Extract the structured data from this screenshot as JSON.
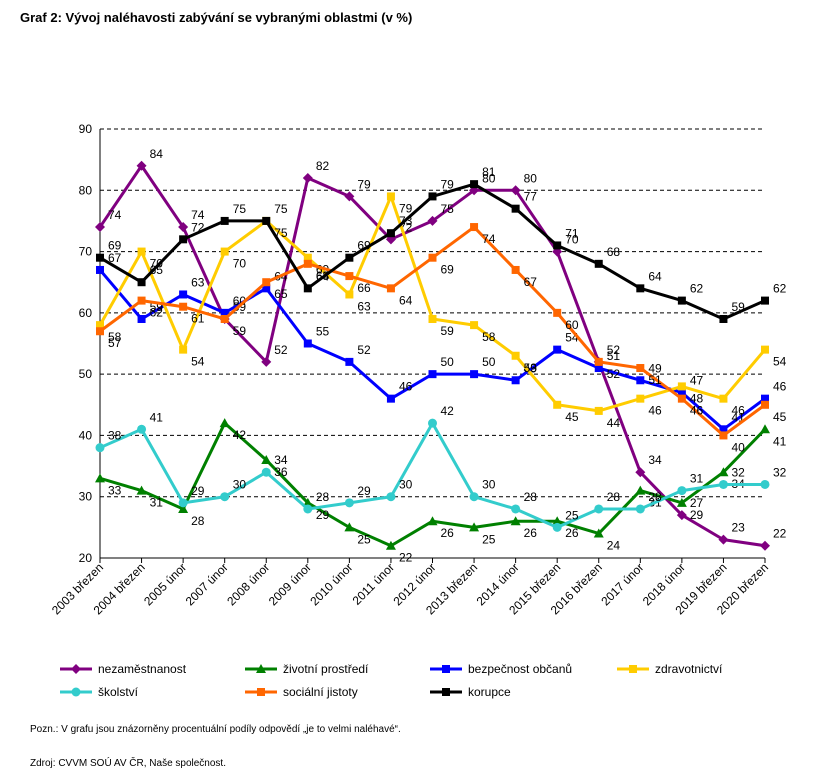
{
  "title": "Graf 2: Vývoj naléhavosti zabývání se vybranými oblastmi (v %)",
  "note": "Pozn.: V grafu jsou znázorněny procentuální podíly odpovědí „je to velmi naléhavé“.",
  "source": "Zdroj: CVVM SOÚ AV ČR, Naše společnost.",
  "chart_data": {
    "type": "line",
    "categories": [
      "2003 březen",
      "2004 březen",
      "2005 únor",
      "2007 únor",
      "2008 únor",
      "2009 únor",
      "2010 únor",
      "2011 únor",
      "2012 únor",
      "2013 březen",
      "2014 únor",
      "2015 březen",
      "2016 březen",
      "2017 únor",
      "2018 únor",
      "2019 březen",
      "2020 březen"
    ],
    "ylim": [
      20,
      90
    ],
    "yticks": [
      20,
      30,
      40,
      50,
      60,
      70,
      80,
      90
    ],
    "grid": "horizontal dashed",
    "legend_position": "bottom",
    "series": [
      {
        "name": "nezaměstnanost",
        "color": "#800080",
        "marker": "diamond",
        "values": [
          74,
          84,
          74,
          59,
          52,
          82,
          79,
          72,
          75,
          80,
          80,
          70,
          52,
          34,
          27,
          23,
          22
        ]
      },
      {
        "name": "životní prostředí",
        "color": "#008000",
        "marker": "triangle",
        "values": [
          33,
          31,
          28,
          42,
          36,
          29,
          25,
          22,
          26,
          25,
          26,
          26,
          24,
          31,
          29,
          34,
          41
        ]
      },
      {
        "name": "bezpečnost občanů",
        "color": "#0000ff",
        "marker": "square",
        "values": [
          67,
          59,
          63,
          60,
          64,
          55,
          52,
          46,
          50,
          50,
          49,
          54,
          51,
          49,
          47,
          41,
          46
        ]
      },
      {
        "name": "zdravotnictví",
        "color": "#ffcc00",
        "marker": "square",
        "values": [
          58,
          70,
          54,
          70,
          75,
          69,
          63,
          79,
          59,
          58,
          53,
          45,
          44,
          46,
          48,
          46,
          54
        ]
      },
      {
        "name": "školství",
        "color": "#33cccc",
        "marker": "circle",
        "values": [
          38,
          41,
          29,
          30,
          34,
          28,
          29,
          30,
          42,
          30,
          28,
          25,
          28,
          28,
          31,
          32,
          32
        ]
      },
      {
        "name": "sociální jistoty",
        "color": "#ff6600",
        "marker": "square",
        "values": [
          57,
          62,
          61,
          59,
          65,
          68,
          66,
          64,
          69,
          74,
          67,
          60,
          52,
          51,
          46,
          40,
          45
        ]
      },
      {
        "name": "korupce",
        "color": "#000000",
        "marker": "square",
        "values": [
          69,
          65,
          72,
          75,
          75,
          64,
          69,
          73,
          79,
          81,
          77,
          71,
          68,
          64,
          62,
          59,
          62
        ]
      }
    ]
  }
}
